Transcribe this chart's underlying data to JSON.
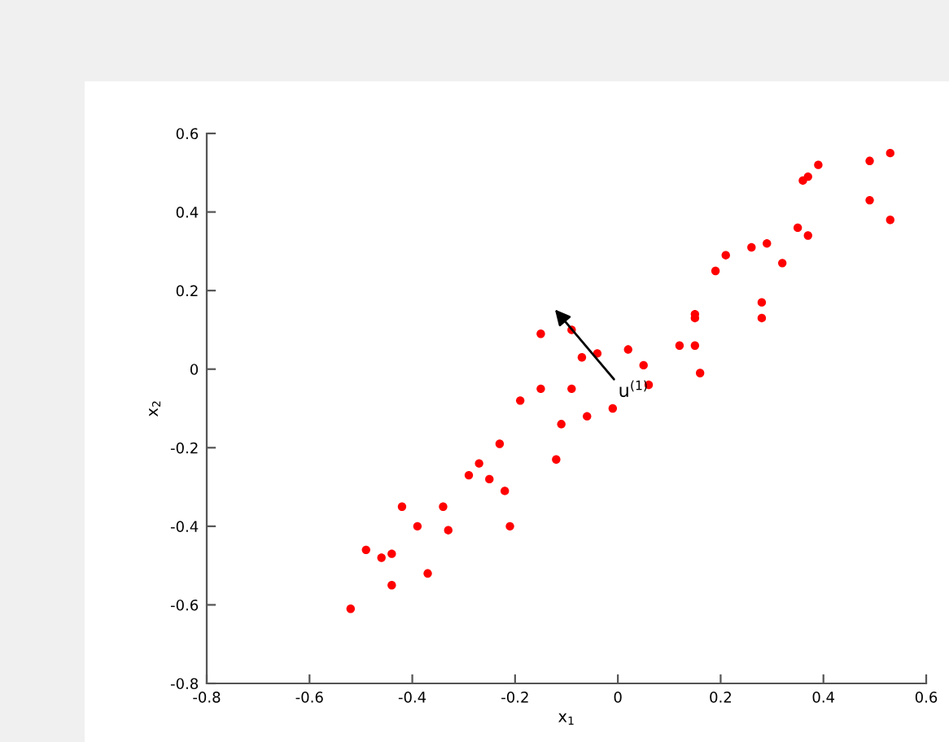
{
  "chart_data": {
    "type": "scatter",
    "xlabel": "x$_{1}$",
    "ylabel": "x$_{2}$",
    "marker": "circle",
    "grid": false,
    "legend": false,
    "xlim": [
      -0.8,
      0.6
    ],
    "xticks": [
      -0.8,
      -0.6,
      -0.4,
      -0.2,
      0,
      0.2,
      0.4,
      0.6
    ],
    "ylim": [
      -0.8,
      0.6
    ],
    "yticks": [
      -0.8,
      -0.6,
      -0.4,
      -0.2,
      0,
      0.2,
      0.4,
      0.6
    ],
    "series": [
      {
        "color": "#ff0000",
        "x": [
          -0.52,
          -0.49,
          -0.46,
          -0.44,
          -0.44,
          -0.42,
          -0.39,
          -0.37,
          -0.34,
          -0.33,
          -0.21,
          -0.22,
          -0.29,
          -0.27,
          -0.25,
          -0.23,
          -0.12,
          -0.19,
          -0.15,
          -0.11,
          -0.06,
          -0.09,
          -0.15,
          -0.07,
          -0.04,
          0.02,
          -0.01,
          -0.09,
          0.05,
          0.06,
          0.12,
          0.15,
          0.16,
          0.15,
          0.15,
          0.19,
          0.21,
          0.26,
          0.29,
          0.32,
          0.28,
          0.28,
          0.35,
          0.37,
          0.36,
          0.37,
          0.39,
          0.49,
          0.53,
          0.49,
          0.53
        ],
        "values": [
          -0.61,
          -0.46,
          -0.48,
          -0.47,
          -0.55,
          -0.35,
          -0.4,
          -0.52,
          -0.35,
          -0.41,
          -0.4,
          -0.31,
          -0.27,
          -0.24,
          -0.28,
          -0.19,
          -0.23,
          -0.08,
          -0.05,
          -0.14,
          -0.12,
          -0.05,
          0.09,
          0.03,
          0.04,
          0.05,
          -0.1,
          0.1,
          0.01,
          -0.04,
          0.06,
          0.06,
          -0.01,
          0.14,
          0.13,
          0.25,
          0.29,
          0.31,
          0.32,
          0.27,
          0.17,
          0.13,
          0.36,
          0.34,
          0.48,
          0.49,
          0.52,
          0.53,
          0.55,
          0.43,
          0.38
        ]
      }
    ],
    "annotations": [
      "u$^{(1)}$"
    ]
  }
}
